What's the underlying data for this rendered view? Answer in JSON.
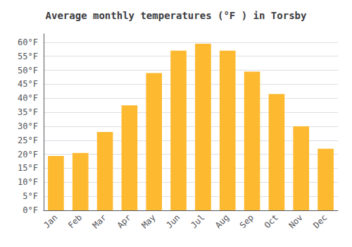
{
  "chart_data": {
    "type": "bar",
    "title": "Average monthly temperatures (°F ) in Torsby",
    "categories": [
      "Jan",
      "Feb",
      "Mar",
      "Apr",
      "May",
      "Jun",
      "Jul",
      "Aug",
      "Sep",
      "Oct",
      "Nov",
      "Dec"
    ],
    "values": [
      19.4,
      20.5,
      28.0,
      37.5,
      49.0,
      57.0,
      59.5,
      57.0,
      49.5,
      41.5,
      30.0,
      22.0
    ],
    "color": "#FDB930",
    "ylim": [
      0,
      63
    ],
    "yticks": [
      {
        "value": 0,
        "label": "0°F"
      },
      {
        "value": 5,
        "label": "5°F"
      },
      {
        "value": 10,
        "label": "10°F"
      },
      {
        "value": 15,
        "label": "15°F"
      },
      {
        "value": 20,
        "label": "20°F"
      },
      {
        "value": 25,
        "label": "25°F"
      },
      {
        "value": 30,
        "label": "30°F"
      },
      {
        "value": 35,
        "label": "35°F"
      },
      {
        "value": 40,
        "label": "40°F"
      },
      {
        "value": 45,
        "label": "45°F"
      },
      {
        "value": 50,
        "label": "50°F"
      },
      {
        "value": 55,
        "label": "55°F"
      },
      {
        "value": 60,
        "label": "60°F"
      }
    ],
    "grid": true
  }
}
